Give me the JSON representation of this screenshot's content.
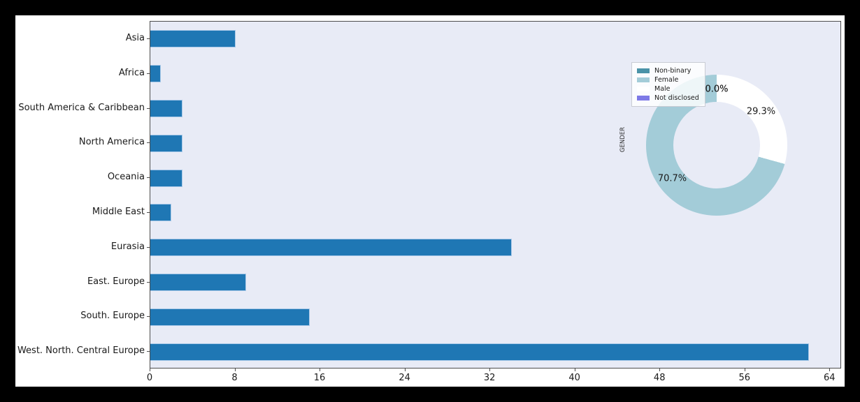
{
  "figure": {
    "frame_color": "#000000",
    "background": "#ffffff",
    "plot_background": "#e8ebf6",
    "spine_color": "#4d4d4d"
  },
  "chart_data": [
    {
      "type": "bar",
      "orientation": "horizontal",
      "title": "",
      "xlabel": "",
      "ylabel": "",
      "categories": [
        "Asia",
        "Africa",
        "South America & Caribbean",
        "North America",
        "Oceania",
        "Middle East",
        "Eurasia",
        "East. Europe",
        "South. Europe",
        "West. North. Central Europe"
      ],
      "values": [
        8,
        1,
        3,
        3,
        3,
        2,
        34,
        9,
        15,
        62
      ],
      "xticks": [
        0,
        8,
        16,
        24,
        32,
        40,
        48,
        56,
        64
      ],
      "xlim": [
        0,
        65.1
      ],
      "grid": false,
      "bar_color": "#1f77b4",
      "bar_edge_color": "#a8c8e8"
    },
    {
      "type": "pie",
      "donut": true,
      "axis_label": "GENDER",
      "start": "top",
      "direction": "counterclockwise",
      "legend_position": "upper-left",
      "slices": [
        {
          "label": "Non-binary",
          "pct": 0.0,
          "pct_label": "0.0%",
          "color": "#4a93a8"
        },
        {
          "label": "Female",
          "pct": 70.7,
          "pct_label": "70.7%",
          "color": "#a3ccd8"
        },
        {
          "label": "Male",
          "pct": 29.3,
          "pct_label": "29.3%",
          "color": "#ffffff"
        },
        {
          "label": "Not disclosed",
          "pct": 0.0,
          "pct_label": "0.0%",
          "color": "#7d79e6"
        }
      ]
    }
  ]
}
